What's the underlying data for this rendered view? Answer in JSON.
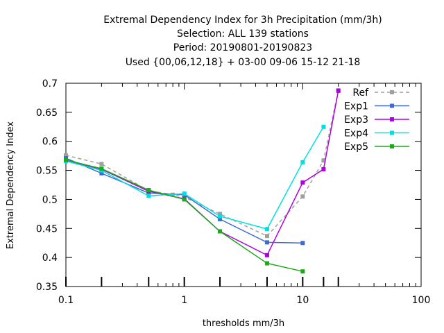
{
  "chart_data": {
    "type": "line",
    "title": [
      "Extremal Dependency Index  for 3h Precipitation (mm/3h)",
      "Selection: ALL    139 stations",
      "Period: 20190801-20190823",
      "Used {00,06,12,18} + 03-00 09-06 15-12 21-18"
    ],
    "xlabel": "thresholds mm/3h",
    "ylabel": "Extremal Dependency Index",
    "xscale": "log",
    "xlim": [
      0.1,
      100
    ],
    "ylim": [
      0.35,
      0.7
    ],
    "xticks": [
      0.1,
      1,
      10,
      100
    ],
    "xtick_labels": [
      "0.1",
      "1",
      "10",
      "100"
    ],
    "yticks": [
      0.35,
      0.4,
      0.45,
      0.5,
      0.55,
      0.6,
      0.65,
      0.7
    ],
    "ytick_labels": [
      "0.35",
      "0.4",
      "0.45",
      "0.5",
      "0.55",
      "0.6",
      "0.65",
      "0.7"
    ],
    "threshold_marks": [
      0.1,
      0.2,
      0.5,
      1,
      2,
      5,
      10,
      15,
      20
    ],
    "grid": false,
    "legend_position": "top-right",
    "series": [
      {
        "name": "Ref",
        "color": "#a0a0a0",
        "dashed": true,
        "x": [
          0.1,
          0.2,
          0.5,
          0.8,
          1,
          2,
          5,
          10,
          15,
          20
        ],
        "y": [
          0.576,
          0.561,
          0.515,
          0.508,
          0.504,
          0.475,
          0.437,
          0.505,
          0.567,
          0.688
        ]
      },
      {
        "name": "Exp1",
        "color": "#4169cf",
        "dashed": false,
        "x": [
          0.1,
          0.2,
          0.5,
          1,
          2,
          5,
          10
        ],
        "y": [
          0.571,
          0.545,
          0.511,
          0.508,
          0.466,
          0.426,
          0.425
        ]
      },
      {
        "name": "Exp3",
        "color": "#b000e0",
        "dashed": false,
        "x": [
          0.1,
          0.2,
          0.5,
          1,
          2,
          5,
          10,
          15,
          20
        ],
        "y": [
          0.567,
          0.552,
          0.514,
          0.501,
          0.445,
          0.404,
          0.529,
          0.552,
          0.687
        ]
      },
      {
        "name": "Exp4",
        "color": "#00e0e0",
        "dashed": false,
        "x": [
          0.1,
          0.2,
          0.5,
          1,
          2,
          5,
          10,
          15
        ],
        "y": [
          0.566,
          0.55,
          0.506,
          0.51,
          0.471,
          0.449,
          0.564,
          0.625
        ]
      },
      {
        "name": "Exp5",
        "color": "#1aaa1a",
        "dashed": false,
        "x": [
          0.1,
          0.2,
          0.5,
          1,
          2,
          5,
          10
        ],
        "y": [
          0.568,
          0.553,
          0.516,
          0.5,
          0.445,
          0.39,
          0.376
        ]
      }
    ]
  }
}
